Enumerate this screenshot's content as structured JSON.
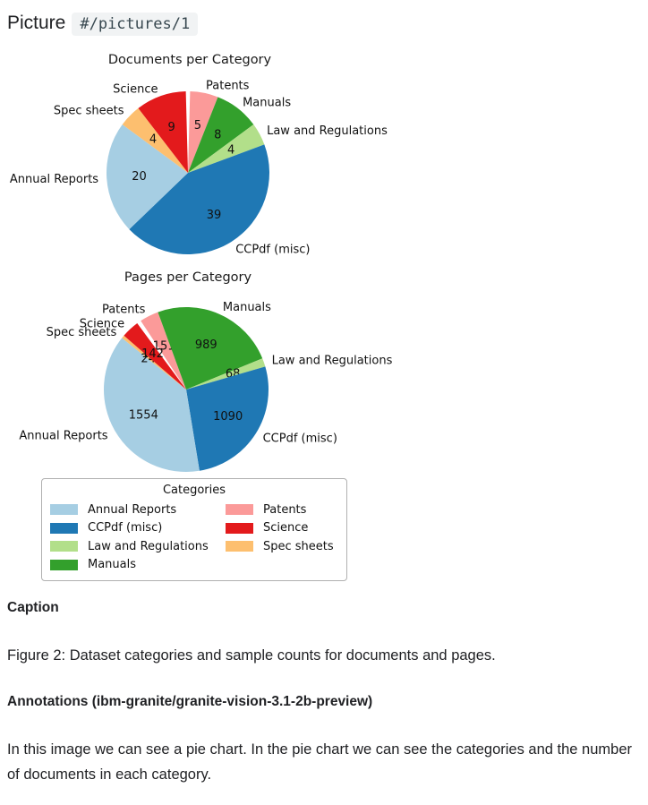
{
  "header": {
    "title": "Picture",
    "path": "#/pictures/1"
  },
  "chart_data": [
    {
      "type": "pie",
      "title": "Documents per Category",
      "rotation_deg": 1.5,
      "gap_deg": 3,
      "labels": [
        "Patents",
        "Manuals",
        "Law and Regulations",
        "CCPdf (misc)",
        "Annual Reports",
        "Spec sheets",
        "Science"
      ],
      "values": [
        5,
        8,
        4,
        39,
        20,
        4,
        9
      ],
      "colors": [
        "#fb9a99",
        "#33a02c",
        "#b2df8a",
        "#1f78b4",
        "#a6cee3",
        "#fdbf6f",
        "#e31a1c"
      ]
    },
    {
      "type": "pie",
      "title": "Pages per Category",
      "rotation_deg": 326.5,
      "gap_deg": 3,
      "labels": [
        "Patents",
        "Manuals",
        "Law and Regulations",
        "CCPdf (misc)",
        "Annual Reports",
        "Spec sheets",
        "Science"
      ],
      "values": [
        151,
        989,
        68,
        1090,
        1554,
        24,
        142
      ],
      "colors": [
        "#fb9a99",
        "#33a02c",
        "#b2df8a",
        "#1f78b4",
        "#a6cee3",
        "#fdbf6f",
        "#e31a1c"
      ]
    }
  ],
  "legend": {
    "title": "Categories",
    "items": [
      {
        "label": "Annual Reports",
        "color": "#a6cee3"
      },
      {
        "label": "CCPdf (misc)",
        "color": "#1f78b4"
      },
      {
        "label": "Law and Regulations",
        "color": "#b2df8a"
      },
      {
        "label": "Manuals",
        "color": "#33a02c"
      },
      {
        "label": "Patents",
        "color": "#fb9a99"
      },
      {
        "label": "Science",
        "color": "#e31a1c"
      },
      {
        "label": "Spec sheets",
        "color": "#fdbf6f"
      }
    ]
  },
  "caption": {
    "heading": "Caption",
    "text": "Figure 2: Dataset categories and sample counts for documents and pages."
  },
  "annotations": {
    "heading": "Annotations (ibm-granite/granite-vision-3.1-2b-preview)",
    "text": "In this image we can see a pie chart. In the pie chart we can see the categories and the number of documents in each category."
  }
}
